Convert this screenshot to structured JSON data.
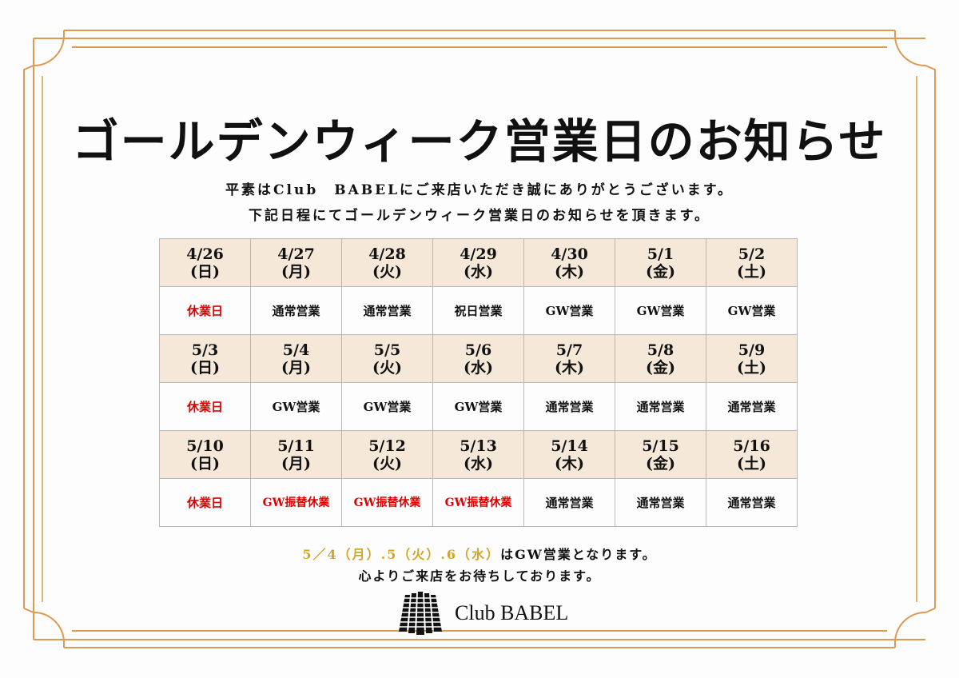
{
  "colors": {
    "frame": "#dd9a52",
    "header_bg": "#f5e8d9",
    "closed": "#e00000",
    "highlight": "#d4a52a"
  },
  "title": "ゴールデンウィーク営業日のお知らせ",
  "intro": [
    "平素はClub　BABELにご来店いただき誠にありがとうございます。",
    "下記日程にてゴールデンウィーク営業日のお知らせを頂きます。"
  ],
  "weeks": [
    {
      "days": [
        {
          "date": "4/26",
          "dow": "(日)",
          "status": "休業日",
          "closed": true
        },
        {
          "date": "4/27",
          "dow": "(月)",
          "status": "通常営業"
        },
        {
          "date": "4/28",
          "dow": "(火)",
          "status": "通常営業"
        },
        {
          "date": "4/29",
          "dow": "(水)",
          "status": "祝日営業"
        },
        {
          "date": "4/30",
          "dow": "(木)",
          "status": "GW営業"
        },
        {
          "date": "5/1",
          "dow": "(金)",
          "status": "GW営業"
        },
        {
          "date": "5/2",
          "dow": "(土)",
          "status": "GW営業"
        }
      ]
    },
    {
      "days": [
        {
          "date": "5/3",
          "dow": "(日)",
          "status": "休業日",
          "closed": true
        },
        {
          "date": "5/4",
          "dow": "(月)",
          "status": "GW営業"
        },
        {
          "date": "5/5",
          "dow": "(火)",
          "status": "GW営業"
        },
        {
          "date": "5/6",
          "dow": "(水)",
          "status": "GW営業"
        },
        {
          "date": "5/7",
          "dow": "(木)",
          "status": "通常営業"
        },
        {
          "date": "5/8",
          "dow": "(金)",
          "status": "通常営業"
        },
        {
          "date": "5/9",
          "dow": "(土)",
          "status": "通常営業"
        }
      ]
    },
    {
      "days": [
        {
          "date": "5/10",
          "dow": "(日)",
          "status": "休業日",
          "closed": true
        },
        {
          "date": "5/11",
          "dow": "(月)",
          "status": "GW振替休業",
          "closed": true
        },
        {
          "date": "5/12",
          "dow": "(火)",
          "status": "GW振替休業",
          "closed": true
        },
        {
          "date": "5/13",
          "dow": "(水)",
          "status": "GW振替休業",
          "closed": true
        },
        {
          "date": "5/14",
          "dow": "(木)",
          "status": "通常営業"
        },
        {
          "date": "5/15",
          "dow": "(金)",
          "status": "通常営業"
        },
        {
          "date": "5/16",
          "dow": "(土)",
          "status": "通常営業"
        }
      ]
    }
  ],
  "note": {
    "highlight": "5／4（月）.5（火）.6（水）",
    "rest": "はGW営業となります。",
    "line2": "心よりご来店をお待ちしております。"
  },
  "logo": {
    "text": "Club BABEL",
    "icon": "babel-tower-logo"
  }
}
